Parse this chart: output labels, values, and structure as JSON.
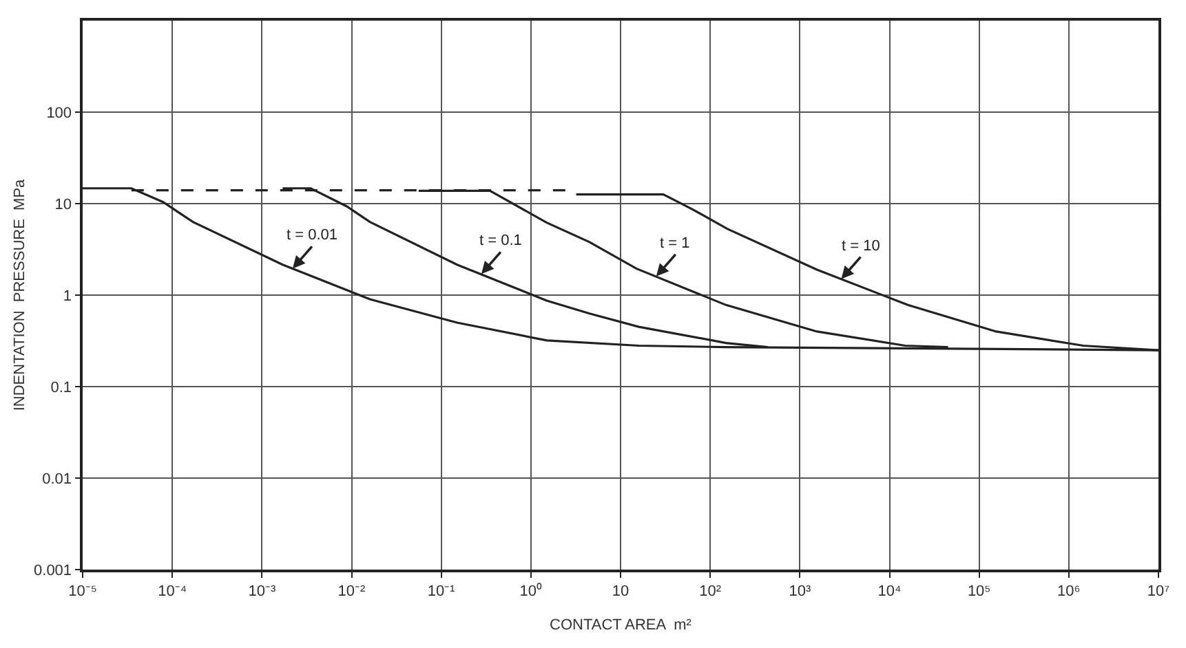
{
  "chart_data": {
    "type": "line",
    "xlabel": "CONTACT AREA  m²",
    "ylabel": "INDENTATION  PRESSURE  MPa",
    "log": "xy",
    "grid": true,
    "marker": "none",
    "xlim": [
      1e-05,
      10000000
    ],
    "ylim": [
      0.001,
      1000
    ],
    "xticks": [
      {
        "value": 1e-05,
        "label": "10⁻⁵"
      },
      {
        "value": 0.0001,
        "label": "10⁻⁴"
      },
      {
        "value": 0.001,
        "label": "10⁻³"
      },
      {
        "value": 0.01,
        "label": "10⁻²"
      },
      {
        "value": 0.1,
        "label": "10⁻¹"
      },
      {
        "value": 1,
        "label": "10⁰"
      },
      {
        "value": 10,
        "label": "10"
      },
      {
        "value": 100,
        "label": "10²"
      },
      {
        "value": 1000,
        "label": "10³"
      },
      {
        "value": 10000,
        "label": "10⁴"
      },
      {
        "value": 100000,
        "label": "10⁵"
      },
      {
        "value": 1000000,
        "label": "10⁶"
      },
      {
        "value": 10000000,
        "label": "10⁷"
      }
    ],
    "yticks": [
      0.001,
      0.01,
      0.1,
      1,
      10,
      100
    ],
    "series": [
      {
        "color": "#222222",
        "line_style": "dashed",
        "x": [
          3.5e-05,
          3.2
        ],
        "values": [
          14,
          14
        ]
      },
      {
        "color": "#222222",
        "line_style": "solid",
        "x": [
          1e-05,
          3.5e-05,
          7.9e-05,
          0.00017,
          0.0017,
          0.016,
          0.15,
          1.5,
          16,
          150,
          10000000
        ],
        "values": [
          14.7,
          14.7,
          10.4,
          6.3,
          2.15,
          0.9,
          0.5,
          0.32,
          0.28,
          0.27,
          0.25
        ]
      },
      {
        "color": "#222222",
        "line_style": "solid",
        "x": [
          0.0017,
          0.0035,
          0.0089,
          0.016,
          0.15,
          1.5,
          4.5,
          16,
          150,
          440
        ],
        "values": [
          14.7,
          14.7,
          9.3,
          6.3,
          2.15,
          0.87,
          0.63,
          0.45,
          0.3,
          0.27
        ]
      },
      {
        "color": "#222222",
        "line_style": "solid",
        "x": [
          0.056,
          0.35,
          1.5,
          4.5,
          15,
          150,
          1550,
          15000,
          45000
        ],
        "values": [
          13.8,
          13.8,
          6.2,
          3.8,
          1.95,
          0.78,
          0.4,
          0.28,
          0.27
        ]
      },
      {
        "color": "#222222",
        "line_style": "solid",
        "x": [
          3.2,
          30,
          63,
          155,
          1550,
          16000,
          155000,
          1450000,
          10000000
        ],
        "values": [
          12.6,
          12.6,
          8.7,
          5.3,
          1.9,
          0.78,
          0.4,
          0.28,
          0.25
        ]
      }
    ],
    "annotations": [
      {
        "text": "t = 0.01",
        "x": 0.0022,
        "y": 1.95
      },
      {
        "text": "t = 0.1",
        "x": 0.28,
        "y": 1.7
      },
      {
        "text": "t = 1",
        "x": 25,
        "y": 1.6
      },
      {
        "text": "t = 10",
        "x": 2900,
        "y": 1.5
      }
    ]
  }
}
